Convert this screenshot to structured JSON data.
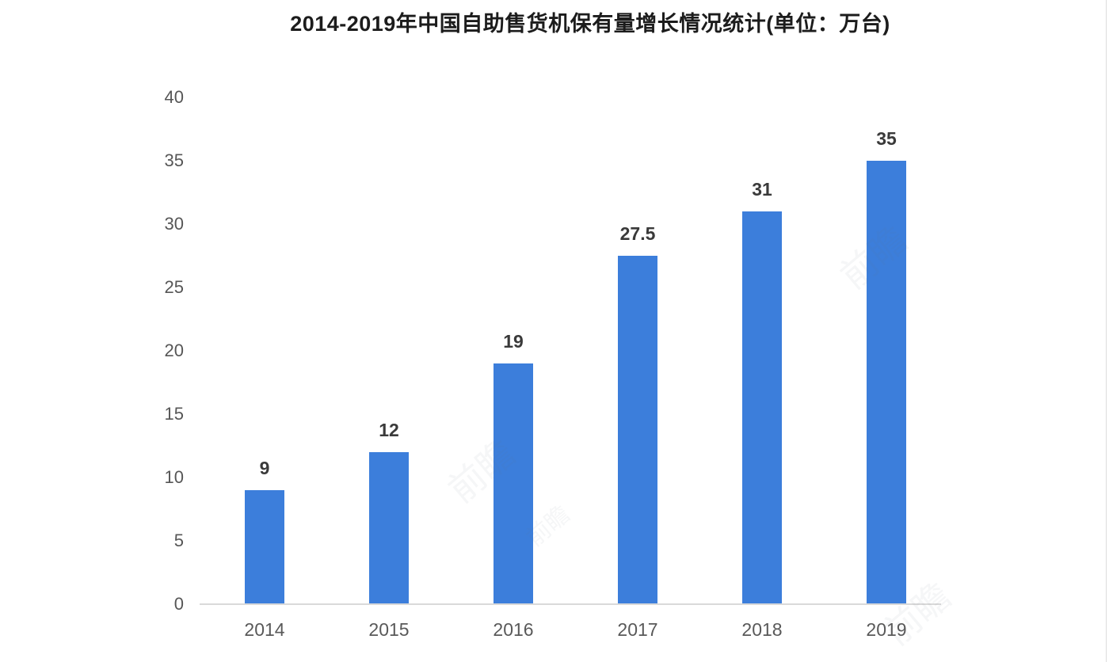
{
  "chart_data": {
    "type": "bar",
    "title": "2014-2019年中国自助售货机保有量增长情况统计(单位：万台)",
    "categories": [
      "2014",
      "2015",
      "2016",
      "2017",
      "2018",
      "2019"
    ],
    "values": [
      9,
      12,
      19,
      27.5,
      31,
      35
    ],
    "value_labels": [
      "9",
      "12",
      "19",
      "27.5",
      "31",
      "35"
    ],
    "xlabel": "",
    "ylabel": "",
    "ylim": [
      0,
      40
    ],
    "yticks": [
      0,
      5,
      10,
      15,
      20,
      25,
      30,
      35,
      40
    ],
    "bar_color": "#3c7edb",
    "axis_line_color": "#d9d9d9",
    "grid": false,
    "legend": false
  },
  "watermark": {
    "text": "前瞻",
    "color": "#6b7280"
  }
}
